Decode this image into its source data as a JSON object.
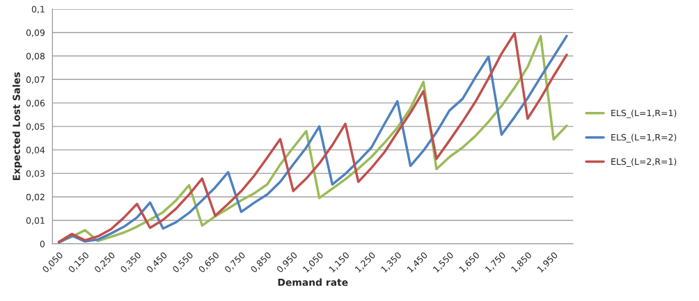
{
  "chart_data": {
    "type": "line",
    "xlabel": "Demand rate",
    "ylabel": "Expected Lost Sales",
    "categories": [
      "0,050",
      null,
      "0,150",
      null,
      "0,250",
      null,
      "0,350",
      null,
      "0,450",
      null,
      "0,550",
      null,
      "0,650",
      null,
      "0,750",
      null,
      "0,850",
      null,
      "0,950",
      null,
      "1,050",
      null,
      "1,150",
      null,
      "1,250",
      null,
      "1,350",
      null,
      "1,450",
      null,
      "1,550",
      null,
      "1,650",
      null,
      "1,750",
      null,
      "1,850",
      null,
      "1,950",
      null
    ],
    "series": [
      {
        "name": "ELS_(L=1,R=1)",
        "color": "#9bbb59",
        "values": [
          0.0008,
          0.003,
          0.0058,
          0.0012,
          0.003,
          0.0048,
          0.0073,
          0.0103,
          0.0135,
          0.0185,
          0.025,
          0.0078,
          0.0117,
          0.015,
          0.0185,
          0.0215,
          0.0253,
          0.0338,
          0.041,
          0.048,
          0.0195,
          0.0235,
          0.0275,
          0.032,
          0.037,
          0.043,
          0.0495,
          0.0577,
          0.069,
          0.0318,
          0.037,
          0.041,
          0.046,
          0.052,
          0.0588,
          0.0665,
          0.0753,
          0.0885,
          0.0445,
          0.0503
        ]
      },
      {
        "name": "ELS_(L=1,R=2)",
        "color": "#4f81bd",
        "values": [
          0.0005,
          0.0035,
          0.001,
          0.0018,
          0.0044,
          0.0073,
          0.0112,
          0.0176,
          0.0065,
          0.0092,
          0.0132,
          0.0185,
          0.024,
          0.0305,
          0.0136,
          0.0175,
          0.021,
          0.0264,
          0.0338,
          0.041,
          0.05,
          0.0253,
          0.0298,
          0.0352,
          0.041,
          0.051,
          0.0607,
          0.0332,
          0.0397,
          0.0475,
          0.0568,
          0.0617,
          0.071,
          0.0797,
          0.0465,
          0.054,
          0.062,
          0.071,
          0.0797,
          0.0885
        ]
      },
      {
        "name": "ELS_(L=2,R=1)",
        "color": "#c0504d",
        "values": [
          0.0008,
          0.0042,
          0.0015,
          0.0032,
          0.0062,
          0.0112,
          0.017,
          0.0068,
          0.0102,
          0.015,
          0.021,
          0.0278,
          0.012,
          0.017,
          0.0224,
          0.029,
          0.0367,
          0.0446,
          0.0225,
          0.0278,
          0.0342,
          0.042,
          0.0511,
          0.0264,
          0.0323,
          0.039,
          0.0475,
          0.0558,
          0.065,
          0.0362,
          0.044,
          0.052,
          0.0606,
          0.0705,
          0.081,
          0.0897,
          0.0533,
          0.062,
          0.0715,
          0.0805
        ]
      }
    ],
    "ylim": [
      0,
      0.1
    ],
    "yticks": [
      {
        "value": 0,
        "label": "0"
      },
      {
        "value": 0.01,
        "label": "0,01"
      },
      {
        "value": 0.02,
        "label": "0,02"
      },
      {
        "value": 0.03,
        "label": "0,03"
      },
      {
        "value": 0.04,
        "label": "0,04"
      },
      {
        "value": 0.05,
        "label": "0,05"
      },
      {
        "value": 0.06,
        "label": "0,06"
      },
      {
        "value": 0.07,
        "label": "0,07"
      },
      {
        "value": 0.08,
        "label": "0,08"
      },
      {
        "value": 0.09,
        "label": "0,09"
      },
      {
        "value": 0.1,
        "label": "0,1"
      }
    ],
    "grid": "y",
    "legend": "right",
    "marker": "none",
    "line_style": "solid"
  }
}
